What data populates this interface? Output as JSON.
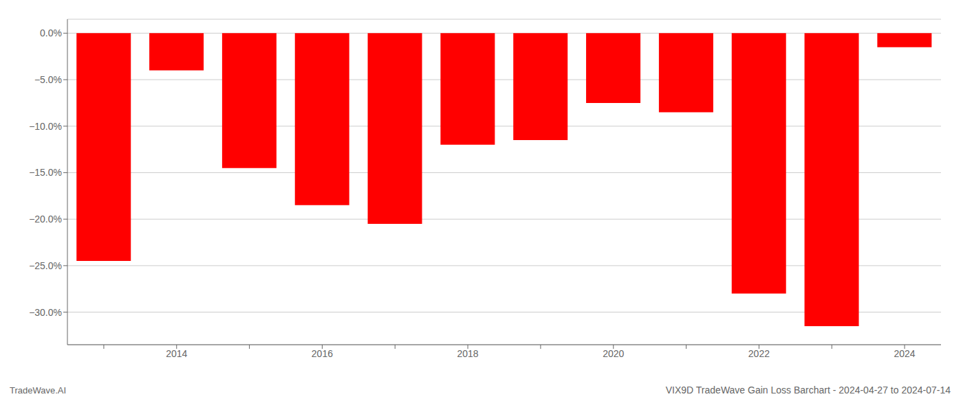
{
  "chart_data": {
    "type": "bar",
    "title": "VIX9D TradeWave Gain Loss Barchart - 2024-04-27 to 2024-07-14",
    "annotations": [
      "TradeWave.AI"
    ],
    "categories": [
      null,
      "2014",
      null,
      "2016",
      null,
      "2018",
      null,
      "2020",
      null,
      "2022",
      null,
      "2024"
    ],
    "values": [
      -24.5,
      -4.0,
      -14.5,
      -18.5,
      -20.5,
      -12.0,
      -11.5,
      -7.5,
      -8.5,
      -28.0,
      -31.5,
      -1.5
    ],
    "color": "#ff0000",
    "ylim": [
      -33.5,
      1.5
    ],
    "yticks": [
      {
        "value": 0.0,
        "label": "0.0%"
      },
      {
        "value": -5.0,
        "label": "−5.0%"
      },
      {
        "value": -10.0,
        "label": "−10.0%"
      },
      {
        "value": -15.0,
        "label": "−15.0%"
      },
      {
        "value": -20.0,
        "label": "−20.0%"
      },
      {
        "value": -25.0,
        "label": "−25.0%"
      },
      {
        "value": -30.0,
        "label": "−30.0%"
      }
    ],
    "grid": true
  }
}
